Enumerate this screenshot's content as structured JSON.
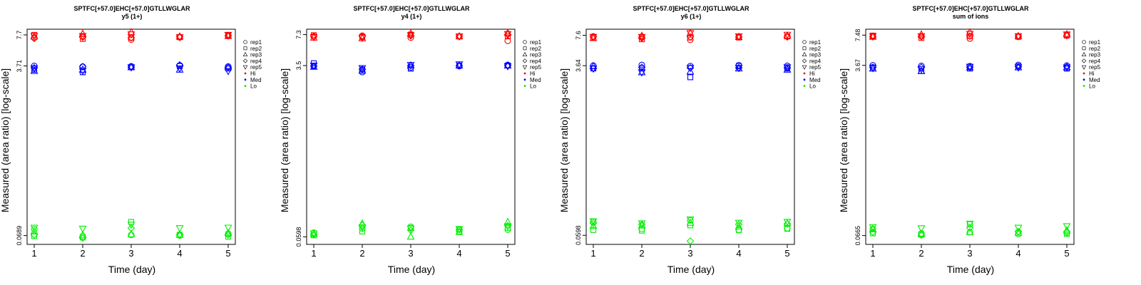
{
  "colors": {
    "Hi": "#ff0000",
    "Med": "#0000ff",
    "Lo": "#00ee00"
  },
  "legend": {
    "shapes": [
      {
        "label": "rep1",
        "icon": "circle-open"
      },
      {
        "label": "rep2",
        "icon": "square-open"
      },
      {
        "label": "rep3",
        "icon": "triangle-up-open"
      },
      {
        "label": "rep4",
        "icon": "diamond-open"
      },
      {
        "label": "rep5",
        "icon": "triangle-down-open"
      }
    ],
    "groups": [
      {
        "label": "Hi",
        "icon": "dot"
      },
      {
        "label": "Med",
        "icon": "dot"
      },
      {
        "label": "Lo",
        "icon": "dot"
      }
    ]
  },
  "chart_data": [
    {
      "type": "scatter",
      "title": "SPTFC[+57.0]EHC[+57.0]GTLLWGLAR",
      "subtitle": "y5 (1+)",
      "xlabel": "Time (day)",
      "ylabel": "Measured (area ratio) [log-scale]",
      "x": [
        1,
        2,
        3,
        4,
        5
      ],
      "yticks": [
        "0.0689",
        "3.71",
        "7.7"
      ],
      "ylim": [
        0.056,
        8.8
      ],
      "log_scale": true,
      "grid": false,
      "legend_position": "right",
      "series": [
        {
          "name": "Hi",
          "reps": [
            [
              7.2,
              7.4,
              6.9,
              7.3,
              7.5
            ],
            [
              7.7,
              7.0,
              7.2,
              7.3,
              7.6
            ],
            [
              7.4,
              7.9,
              8.2,
              7.4,
              7.5
            ],
            [
              7.1,
              7.3,
              7.2,
              7.4,
              7.6
            ],
            [
              7.5,
              7.5,
              7.8,
              7.3,
              7.7
            ]
          ]
        },
        {
          "name": "Med",
          "reps": [
            [
              3.71,
              3.65,
              3.68,
              3.75,
              3.66
            ],
            [
              3.4,
              3.2,
              3.6,
              3.7,
              3.5
            ],
            [
              3.3,
              3.4,
              3.6,
              3.4,
              3.6
            ],
            [
              3.55,
              3.65,
              3.6,
              3.8,
              3.6
            ],
            [
              3.5,
              3.3,
              3.6,
              3.5,
              3.3
            ]
          ]
        },
        {
          "name": "Lo",
          "reps": [
            [
              0.08,
              0.068,
              0.07,
              0.069,
              0.072
            ],
            [
              0.068,
              0.066,
              0.095,
              0.07,
              0.067
            ],
            [
              0.076,
              0.07,
              0.071,
              0.07,
              0.073
            ],
            [
              0.07,
              0.065,
              0.082,
              0.071,
              0.07
            ],
            [
              0.083,
              0.081,
              0.089,
              0.082,
              0.083
            ]
          ]
        }
      ]
    },
    {
      "type": "scatter",
      "title": "SPTFC[+57.0]EHC[+57.0]GTLLWGLAR",
      "subtitle": "y4 (1+)",
      "xlabel": "Time (day)",
      "ylabel": "Measured (area ratio) [log-scale]",
      "x": [
        1,
        2,
        3,
        4,
        5
      ],
      "yticks": [
        "0.0598",
        "3.5",
        "7.3"
      ],
      "ylim": [
        0.05,
        8.3
      ],
      "log_scale": true,
      "grid": false,
      "legend_position": "right",
      "series": [
        {
          "name": "Hi",
          "reps": [
            [
              7.0,
              7.1,
              6.8,
              7.0,
              6.3
            ],
            [
              7.2,
              6.9,
              7.3,
              7.0,
              7.0
            ],
            [
              6.8,
              6.7,
              7.5,
              7.0,
              7.6
            ],
            [
              7.0,
              7.0,
              7.1,
              7.0,
              7.3
            ],
            [
              6.9,
              6.8,
              7.2,
              7.0,
              7.4
            ]
          ]
        },
        {
          "name": "Med",
          "reps": [
            [
              3.45,
              3.0,
              3.35,
              3.45,
              3.55
            ],
            [
              3.7,
              3.2,
              3.25,
              3.5,
              3.5
            ],
            [
              3.4,
              3.1,
              3.5,
              3.5,
              3.5
            ],
            [
              3.45,
              3.2,
              3.5,
              3.5,
              3.5
            ],
            [
              3.5,
              3.3,
              3.55,
              3.6,
              3.45
            ]
          ]
        },
        {
          "name": "Lo",
          "reps": [
            [
              0.066,
              0.073,
              0.076,
              0.068,
              0.071
            ],
            [
              0.062,
              0.068,
              0.074,
              0.071,
              0.074
            ],
            [
              0.064,
              0.082,
              0.06,
              0.067,
              0.085
            ],
            [
              0.063,
              0.079,
              0.07,
              0.071,
              0.078
            ],
            [
              0.065,
              0.075,
              0.073,
              0.072,
              0.077
            ]
          ]
        }
      ]
    },
    {
      "type": "scatter",
      "title": "SPTFC[+57.0]EHC[+57.0]GTLLWGLAR",
      "subtitle": "y6 (1+)",
      "xlabel": "Time (day)",
      "ylabel": "Measured (area ratio) [log-scale]",
      "x": [
        1,
        2,
        3,
        4,
        5
      ],
      "yticks": [
        "0.0598",
        "3.64",
        "7.6"
      ],
      "ylim": [
        0.048,
        8.8
      ],
      "log_scale": true,
      "grid": false,
      "legend_position": "right",
      "series": [
        {
          "name": "Hi",
          "reps": [
            [
              7.4,
              7.3,
              6.8,
              7.3,
              7.4
            ],
            [
              7.2,
              6.9,
              7.2,
              7.2,
              7.4
            ],
            [
              7.1,
              7.5,
              8.0,
              7.3,
              7.5
            ],
            [
              7.3,
              7.1,
              7.3,
              7.3,
              7.3
            ],
            [
              7.3,
              7.3,
              8.0,
              7.4,
              7.7
            ]
          ]
        },
        {
          "name": "Med",
          "reps": [
            [
              3.64,
              3.7,
              3.6,
              3.68,
              3.62
            ],
            [
              3.4,
              3.4,
              2.75,
              3.6,
              3.4
            ],
            [
              3.6,
              3.1,
              3.15,
              3.4,
              3.3
            ],
            [
              3.4,
              3.5,
              3.45,
              3.45,
              3.45
            ],
            [
              3.4,
              3.1,
              3.45,
              3.45,
              3.5
            ]
          ]
        },
        {
          "name": "Lo",
          "reps": [
            [
              0.083,
              0.07,
              0.086,
              0.068,
              0.071
            ],
            [
              0.068,
              0.067,
              0.076,
              0.068,
              0.07
            ],
            [
              0.075,
              0.076,
              0.081,
              0.074,
              0.08
            ],
            [
              0.08,
              0.078,
              0.052,
              0.078,
              0.079
            ],
            [
              0.084,
              0.08,
              0.088,
              0.081,
              0.083
            ]
          ]
        }
      ]
    },
    {
      "type": "scatter",
      "title": "SPTFC[+57.0]EHC[+57.0]GTLLWGLAR",
      "subtitle": "sum of ions",
      "xlabel": "Time (day)",
      "ylabel": "Measured (area ratio) [log-scale]",
      "x": [
        1,
        2,
        3,
        4,
        5
      ],
      "yticks": [
        "0.0665",
        "3.67",
        "7.48"
      ],
      "ylim": [
        0.054,
        8.6
      ],
      "log_scale": true,
      "grid": false,
      "legend_position": "right",
      "series": [
        {
          "name": "Hi",
          "reps": [
            [
              7.2,
              7.3,
              6.9,
              7.2,
              7.5
            ],
            [
              7.4,
              7.0,
              7.3,
              7.2,
              7.4
            ],
            [
              7.2,
              7.6,
              8.0,
              7.3,
              7.6
            ],
            [
              7.2,
              7.2,
              7.3,
              7.3,
              7.4
            ],
            [
              7.3,
              7.3,
              7.7,
              7.3,
              7.6
            ]
          ]
        },
        {
          "name": "Med",
          "reps": [
            [
              3.67,
              3.62,
              3.6,
              3.7,
              3.65
            ],
            [
              3.5,
              3.2,
              3.4,
              3.6,
              3.4
            ],
            [
              3.4,
              3.2,
              3.5,
              3.5,
              3.5
            ],
            [
              3.5,
              3.5,
              3.5,
              3.55,
              3.55
            ],
            [
              3.45,
              3.35,
              3.55,
              3.5,
              3.5
            ]
          ]
        },
        {
          "name": "Lo",
          "reps": [
            [
              0.078,
              0.07,
              0.072,
              0.069,
              0.071
            ],
            [
              0.07,
              0.068,
              0.087,
              0.071,
              0.069
            ],
            [
              0.077,
              0.069,
              0.072,
              0.071,
              0.075
            ],
            [
              0.072,
              0.067,
              0.08,
              0.073,
              0.073
            ],
            [
              0.081,
              0.079,
              0.088,
              0.08,
              0.083
            ]
          ]
        }
      ]
    }
  ]
}
